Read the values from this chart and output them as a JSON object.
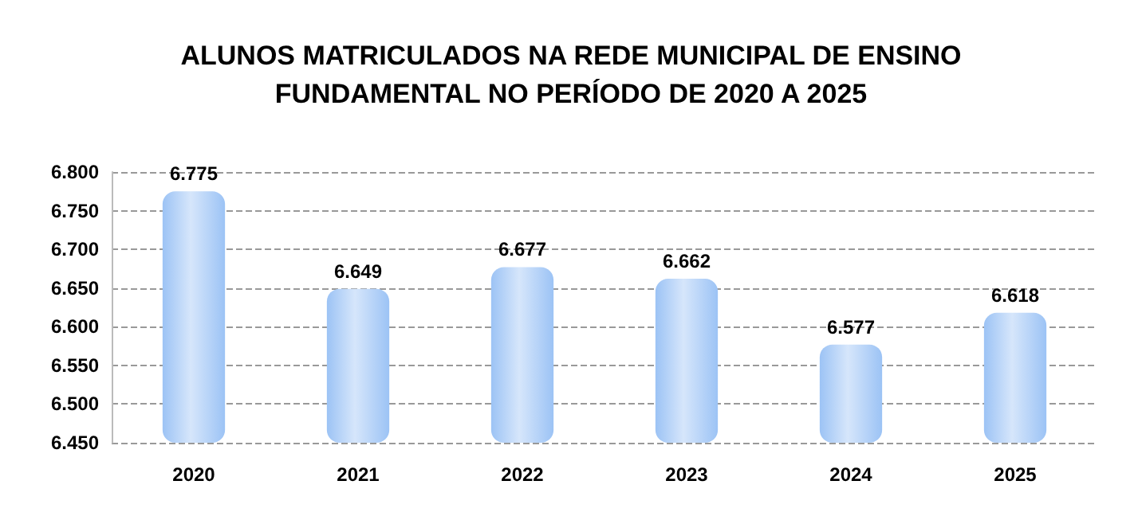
{
  "chart_data": {
    "type": "bar",
    "title": "ALUNOS MATRICULADOS NA REDE MUNICIPAL DE ENSINO\nFUNDAMENTAL NO PERÍODO DE 2020 A 2025",
    "categories": [
      "2020",
      "2021",
      "2022",
      "2023",
      "2024",
      "2025"
    ],
    "values": [
      6775,
      6649,
      6677,
      6662,
      6577,
      6618
    ],
    "value_labels": [
      "6.775",
      "6.649",
      "6.677",
      "6.662",
      "6.577",
      "6.618"
    ],
    "color": "#9cc3f5",
    "ylim": [
      6450,
      6800
    ],
    "yticks": [
      {
        "value": 6450,
        "label": "6.450"
      },
      {
        "value": 6500,
        "label": "6.500"
      },
      {
        "value": 6550,
        "label": "6.550"
      },
      {
        "value": 6600,
        "label": "6.600"
      },
      {
        "value": 6650,
        "label": "6.650"
      },
      {
        "value": 6700,
        "label": "6.700"
      },
      {
        "value": 6750,
        "label": "6.750"
      },
      {
        "value": 6800,
        "label": "6.800"
      }
    ],
    "grid": "y"
  }
}
